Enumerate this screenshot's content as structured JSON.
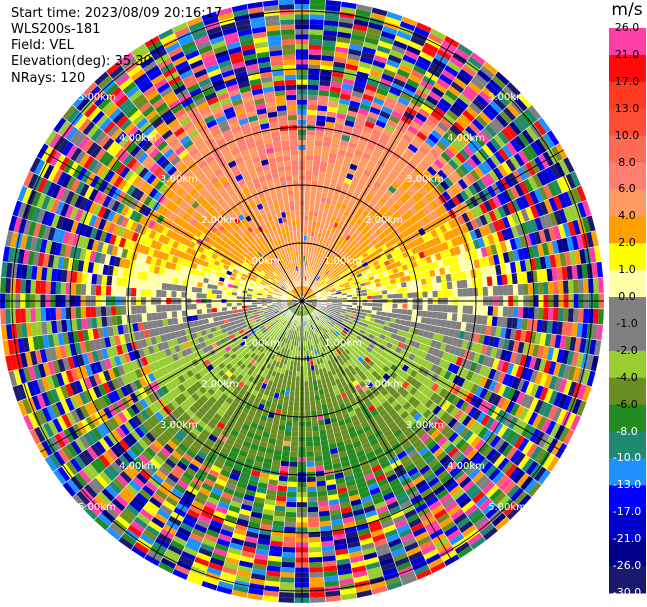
{
  "header": {
    "start_time": "Start time: 2023/08/09 20:16:17",
    "instrument": "WLS200s-181",
    "field": "Field: VEL",
    "elevation": "Elevation(deg): 35.30",
    "nrays": "NRays: 120"
  },
  "colorbar": {
    "unit": "m/s",
    "ticks": [
      "26.0",
      "21.0",
      "17.0",
      "13.0",
      "10.0",
      "8.0",
      "6.0",
      "4.0",
      "2.0",
      "1.0",
      "0.0",
      "-1.0",
      "-2.0",
      "-4.0",
      "-6.0",
      "-8.0",
      "-10.0",
      "-13.0",
      "-17.0",
      "-21.0",
      "-26.0",
      "-30.0"
    ],
    "colors": [
      "#ff3fa5",
      "#ff3fa5",
      "#ff0a0a",
      "#ff3a1e",
      "#ff4d36",
      "#ff6a55",
      "#ff8070",
      "#ff9a60",
      "#ffa000",
      "#ffff00",
      "#ffffaa",
      "#808080",
      "#808080",
      "#9acd32",
      "#6b8e23",
      "#228b22",
      "#1f8a6f",
      "#1e90ff",
      "#0000ff",
      "#0000cd",
      "#00008b",
      "#191970"
    ]
  },
  "chart_data": {
    "type": "ppi",
    "field": "VEL",
    "units": "m/s",
    "nrays": 120,
    "ring_labels": [
      "1.00km",
      "2.00km",
      "3.00km",
      "4.00km",
      "5.00km"
    ],
    "range_rings_km": [
      1,
      2,
      3,
      4,
      5
    ],
    "max_range_km": 5.3,
    "spoke_every_deg": 30,
    "colorbar_range": [
      -30,
      26
    ],
    "sectors": {
      "north": "yellow/orange, roughly +2 to +8 m/s",
      "south": "green, roughly -2 to -8 m/s",
      "east_west_near": "gray, near 0 m/s",
      "outer": "noisy, all colors"
    }
  }
}
